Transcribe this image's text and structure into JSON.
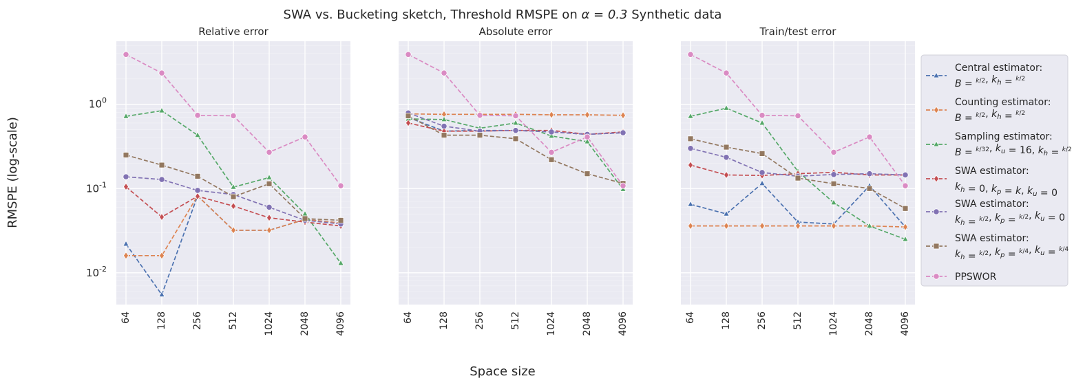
{
  "figure": {
    "suptitle_prefix": "SWA vs. Bucketing sketch, Threshold RMSPE on ",
    "suptitle_alpha": "α = 0.3",
    "suptitle_suffix": " Synthetic data",
    "ylabel": "RMSPE (log-scale)",
    "xlabel": "Space size"
  },
  "legend": [
    {
      "line1": "Central estimator:",
      "line2": "B = k/2, kh = k/2"
    },
    {
      "line1": "Counting estimator:",
      "line2": "B = k/2, kh = k/2"
    },
    {
      "line1": "Sampling estimator:",
      "line2": "B = k/32, ku = 16, kh = k/2"
    },
    {
      "line1": "SWA estimator:",
      "line2": "kh = 0, kp = k, ku = 0"
    },
    {
      "line1": "SWA estimator:",
      "line2": "kh = k/2, kp = k/2, ku = 0"
    },
    {
      "line1": "SWA estimator:",
      "line2": "kh = k/2, kp = k/4, ku = k/4"
    },
    {
      "line1": "PPSWOR",
      "line2": ""
    }
  ],
  "chart_data": [
    {
      "type": "line",
      "title": "Relative error",
      "x": [
        "64",
        "128",
        "256",
        "512",
        "1024",
        "2048",
        "4096"
      ],
      "yscale": "log",
      "ylim": [
        0.0042,
        5.6
      ],
      "yticks": [
        "10^-2",
        "10^-1",
        "10^0"
      ],
      "series": [
        {
          "name": "Central estimator: B = k/2, kh = k/2",
          "color": "#4c72b0",
          "marker": "triangle",
          "values": [
            0.022,
            0.0055,
            0.082,
            0.032,
            0.032,
            0.043,
            0.039
          ]
        },
        {
          "name": "Counting estimator: B = k/2, kh = k/2",
          "color": "#dd8452",
          "marker": "diamond",
          "values": [
            0.016,
            0.016,
            0.082,
            0.032,
            0.032,
            0.043,
            0.039
          ]
        },
        {
          "name": "Sampling estimator: B = k/32, ku = 16, kh = k/2",
          "color": "#55a868",
          "marker": "triangle",
          "values": [
            0.72,
            0.84,
            0.43,
            0.104,
            0.135,
            0.05,
            0.013
          ]
        },
        {
          "name": "SWA estimator: kh = 0, kp = k, ku = 0",
          "color": "#c44e52",
          "marker": "diamond",
          "values": [
            0.105,
            0.046,
            0.081,
            0.062,
            0.045,
            0.04,
            0.036
          ]
        },
        {
          "name": "SWA estimator: kh = k/2, kp = k/2, ku = 0",
          "color": "#8172b3",
          "marker": "circle",
          "values": [
            0.138,
            0.128,
            0.095,
            0.085,
            0.06,
            0.042,
            0.038
          ]
        },
        {
          "name": "SWA estimator: kh = k/2, kp = k/4, ku = k/4",
          "color": "#937860",
          "marker": "square",
          "values": [
            0.25,
            0.19,
            0.14,
            0.08,
            0.114,
            0.044,
            0.042
          ]
        },
        {
          "name": "PPSWOR",
          "color": "#da8bc3",
          "marker": "circle",
          "values": [
            3.9,
            2.35,
            0.74,
            0.73,
            0.27,
            0.41,
            0.108
          ]
        }
      ]
    },
    {
      "type": "line",
      "title": "Absolute error",
      "x": [
        "64",
        "128",
        "256",
        "512",
        "1024",
        "2048",
        "4096"
      ],
      "yscale": "log",
      "ylim": [
        0.0042,
        5.6
      ],
      "series": [
        {
          "name": "Central estimator: B = k/2, kh = k/2",
          "color": "#4c72b0",
          "marker": "triangle",
          "values": [
            0.7,
            0.48,
            0.49,
            0.49,
            0.47,
            0.44,
            0.46
          ]
        },
        {
          "name": "Counting estimator: B = k/2, kh = k/2",
          "color": "#dd8452",
          "marker": "diamond",
          "values": [
            0.77,
            0.76,
            0.76,
            0.76,
            0.75,
            0.75,
            0.74
          ]
        },
        {
          "name": "Sampling estimator: B = k/32, ku = 16, kh = k/2",
          "color": "#55a868",
          "marker": "triangle",
          "values": [
            0.67,
            0.66,
            0.52,
            0.6,
            0.42,
            0.36,
            0.098
          ]
        },
        {
          "name": "SWA estimator: kh = 0, kp = k, ku = 0",
          "color": "#c44e52",
          "marker": "diamond",
          "values": [
            0.6,
            0.48,
            0.48,
            0.49,
            0.49,
            0.44,
            0.47
          ]
        },
        {
          "name": "SWA estimator: kh = k/2, kp = k/2, ku = 0",
          "color": "#8172b3",
          "marker": "circle",
          "values": [
            0.79,
            0.55,
            0.48,
            0.49,
            0.47,
            0.44,
            0.46
          ]
        },
        {
          "name": "SWA estimator: kh = k/2, kp = k/4, ku = k/4",
          "color": "#937860",
          "marker": "square",
          "values": [
            0.73,
            0.43,
            0.43,
            0.39,
            0.22,
            0.15,
            0.115
          ]
        },
        {
          "name": "PPSWOR",
          "color": "#da8bc3",
          "marker": "circle",
          "values": [
            3.9,
            2.35,
            0.74,
            0.73,
            0.27,
            0.41,
            0.108
          ]
        }
      ]
    },
    {
      "type": "line",
      "title": "Train/test error",
      "x": [
        "64",
        "128",
        "256",
        "512",
        "1024",
        "2048",
        "4096"
      ],
      "yscale": "log",
      "ylim": [
        0.0042,
        5.6
      ],
      "series": [
        {
          "name": "Central estimator: B = k/2, kh = k/2",
          "color": "#4c72b0",
          "marker": "triangle",
          "values": [
            0.065,
            0.05,
            0.115,
            0.04,
            0.038,
            0.108,
            0.035
          ]
        },
        {
          "name": "Counting estimator: B = k/2, kh = k/2",
          "color": "#dd8452",
          "marker": "diamond",
          "values": [
            0.036,
            0.036,
            0.036,
            0.036,
            0.036,
            0.036,
            0.035
          ]
        },
        {
          "name": "Sampling estimator: B = k/32, ku = 16, kh = k/2",
          "color": "#55a868",
          "marker": "triangle",
          "values": [
            0.72,
            0.9,
            0.6,
            0.16,
            0.068,
            0.036,
            0.025
          ]
        },
        {
          "name": "SWA estimator: kh = 0, kp = k, ku = 0",
          "color": "#c44e52",
          "marker": "diamond",
          "values": [
            0.19,
            0.145,
            0.143,
            0.15,
            0.156,
            0.145,
            0.145
          ]
        },
        {
          "name": "SWA estimator: kh = k/2, kp = k/2, ku = 0",
          "color": "#8172b3",
          "marker": "circle",
          "values": [
            0.3,
            0.235,
            0.155,
            0.14,
            0.147,
            0.15,
            0.145
          ]
        },
        {
          "name": "SWA estimator: kh = k/2, kp = k/4, ku = k/4",
          "color": "#937860",
          "marker": "square",
          "values": [
            0.39,
            0.31,
            0.26,
            0.133,
            0.114,
            0.1,
            0.058
          ]
        },
        {
          "name": "PPSWOR",
          "color": "#da8bc3",
          "marker": "circle",
          "values": [
            3.9,
            2.35,
            0.74,
            0.73,
            0.27,
            0.41,
            0.108
          ]
        }
      ]
    }
  ]
}
